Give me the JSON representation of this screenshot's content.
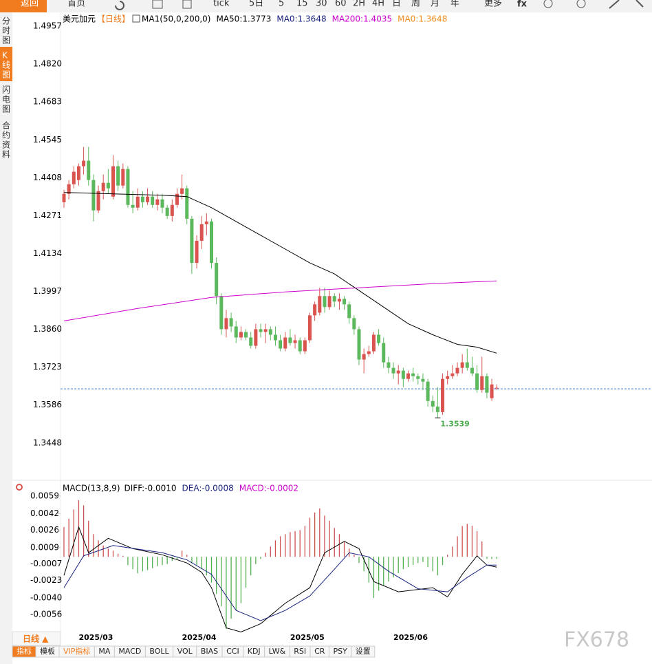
{
  "toolbar": {
    "back": "返回",
    "home": "首页",
    "items": [
      "tick",
      "5日",
      "5",
      "15",
      "30",
      "60",
      "2H",
      "4H",
      "日",
      "周",
      "月",
      "年"
    ],
    "more": "更多"
  },
  "sidebar": [
    "分时图",
    "K线图",
    "闪电图",
    "合约资料"
  ],
  "chart_data": [
    {
      "type": "candlestick",
      "title": "美元加元",
      "period": "【日线】",
      "indicator": "MA1(50,0,200,0)",
      "categories": [
        null,
        null,
        null,
        "2025/03",
        null,
        null,
        null,
        null,
        null,
        null,
        null,
        null,
        null,
        null,
        null,
        null,
        null,
        null,
        null,
        null,
        null,
        null,
        null,
        null,
        "2025/04",
        null,
        null,
        null,
        null,
        null,
        null,
        null,
        null,
        null,
        null,
        null,
        null,
        null,
        null,
        null,
        null,
        null,
        null,
        null,
        null,
        null,
        "2025/05",
        null,
        null,
        null,
        null,
        null,
        null,
        null,
        null,
        null,
        null,
        null,
        null,
        null,
        null,
        null,
        null,
        null,
        null,
        null,
        null,
        "2025/06",
        null,
        null,
        null,
        null,
        null,
        null,
        null,
        null,
        null,
        null,
        null,
        null,
        null,
        null,
        null,
        null,
        null,
        null,
        null,
        null,
        null
      ],
      "ohlc": [
        [
          1.432,
          1.4365,
          1.43,
          1.435
        ],
        [
          1.435,
          1.44,
          1.433,
          1.4385
        ],
        [
          1.4385,
          1.445,
          1.437,
          1.443
        ],
        [
          1.44,
          1.446,
          1.438,
          1.445
        ],
        [
          1.445,
          1.452,
          1.442,
          1.447
        ],
        [
          1.447,
          1.452,
          1.438,
          1.44
        ],
        [
          1.44,
          1.442,
          1.425,
          1.429
        ],
        [
          1.429,
          1.438,
          1.428,
          1.436
        ],
        [
          1.436,
          1.442,
          1.433,
          1.439
        ],
        [
          1.439,
          1.444,
          1.435,
          1.437
        ],
        [
          1.434,
          1.449,
          1.433,
          1.445
        ],
        [
          1.445,
          1.447,
          1.436,
          1.438
        ],
        [
          1.438,
          1.446,
          1.437,
          1.444
        ],
        [
          1.444,
          1.445,
          1.43,
          1.431
        ],
        [
          1.431,
          1.436,
          1.428,
          1.43
        ],
        [
          1.43,
          1.437,
          1.429,
          1.434
        ],
        [
          1.434,
          1.436,
          1.43,
          1.432
        ],
        [
          1.432,
          1.437,
          1.431,
          1.434
        ],
        [
          1.434,
          1.436,
          1.43,
          1.431
        ],
        [
          1.431,
          1.435,
          1.429,
          1.433
        ],
        [
          1.433,
          1.435,
          1.428,
          1.43
        ],
        [
          1.43,
          1.431,
          1.426,
          1.427
        ],
        [
          1.427,
          1.433,
          1.425,
          1.431
        ],
        [
          1.431,
          1.437,
          1.43,
          1.435
        ],
        [
          1.435,
          1.442,
          1.433,
          1.437
        ],
        [
          1.437,
          1.438,
          1.424,
          1.426
        ],
        [
          1.426,
          1.427,
          1.406,
          1.41
        ],
        [
          1.41,
          1.42,
          1.408,
          1.418
        ],
        [
          1.418,
          1.427,
          1.415,
          1.424
        ],
        [
          1.424,
          1.428,
          1.42,
          1.425
        ],
        [
          1.425,
          1.426,
          1.408,
          1.41
        ],
        [
          1.41,
          1.412,
          1.395,
          1.398
        ],
        [
          1.398,
          1.399,
          1.384,
          1.386
        ],
        [
          1.386,
          1.393,
          1.383,
          1.39
        ],
        [
          1.39,
          1.392,
          1.385,
          1.387
        ],
        [
          1.387,
          1.389,
          1.381,
          1.383
        ],
        [
          1.383,
          1.387,
          1.382,
          1.385
        ],
        [
          1.385,
          1.386,
          1.382,
          1.383
        ],
        [
          1.383,
          1.385,
          1.379,
          1.38
        ],
        [
          1.38,
          1.388,
          1.379,
          1.386
        ],
        [
          1.386,
          1.388,
          1.383,
          1.385
        ],
        [
          1.385,
          1.388,
          1.381,
          1.386
        ],
        [
          1.386,
          1.387,
          1.382,
          1.384
        ],
        [
          1.384,
          1.387,
          1.38,
          1.382
        ],
        [
          1.382,
          1.384,
          1.378,
          1.379
        ],
        [
          1.379,
          1.385,
          1.378,
          1.383
        ],
        [
          1.383,
          1.386,
          1.38,
          1.381
        ],
        [
          1.381,
          1.384,
          1.379,
          1.382
        ],
        [
          1.382,
          1.383,
          1.377,
          1.378
        ],
        [
          1.378,
          1.383,
          1.377,
          1.382
        ],
        [
          1.382,
          1.392,
          1.381,
          1.391
        ],
        [
          1.391,
          1.396,
          1.389,
          1.395
        ],
        [
          1.392,
          1.401,
          1.391,
          1.398
        ],
        [
          1.398,
          1.401,
          1.392,
          1.394
        ],
        [
          1.394,
          1.4,
          1.393,
          1.398
        ],
        [
          1.398,
          1.399,
          1.394,
          1.396
        ],
        [
          1.396,
          1.399,
          1.393,
          1.397
        ],
        [
          1.397,
          1.398,
          1.393,
          1.395
        ],
        [
          1.395,
          1.396,
          1.388,
          1.39
        ],
        [
          1.39,
          1.391,
          1.384,
          1.386
        ],
        [
          1.386,
          1.387,
          1.373,
          1.375
        ],
        [
          1.375,
          1.379,
          1.37,
          1.377
        ],
        [
          1.377,
          1.38,
          1.376,
          1.378
        ],
        [
          1.378,
          1.385,
          1.377,
          1.384
        ],
        [
          1.384,
          1.386,
          1.38,
          1.381
        ],
        [
          1.381,
          1.383,
          1.372,
          1.374
        ],
        [
          1.374,
          1.376,
          1.37,
          1.372
        ],
        [
          1.372,
          1.374,
          1.368,
          1.37
        ],
        [
          1.37,
          1.373,
          1.366,
          1.371
        ],
        [
          1.371,
          1.372,
          1.365,
          1.368
        ],
        [
          1.368,
          1.371,
          1.367,
          1.37
        ],
        [
          1.37,
          1.372,
          1.367,
          1.369
        ],
        [
          1.369,
          1.37,
          1.366,
          1.368
        ],
        [
          1.368,
          1.37,
          1.364,
          1.367
        ],
        [
          1.367,
          1.368,
          1.358,
          1.36
        ],
        [
          1.36,
          1.362,
          1.356,
          1.358
        ],
        [
          1.358,
          1.365,
          1.3539,
          1.356
        ],
        [
          1.356,
          1.37,
          1.355,
          1.368
        ],
        [
          1.368,
          1.371,
          1.366,
          1.369
        ],
        [
          1.369,
          1.373,
          1.368,
          1.37
        ],
        [
          1.37,
          1.374,
          1.369,
          1.372
        ],
        [
          1.372,
          1.377,
          1.37,
          1.374
        ],
        [
          1.374,
          1.379,
          1.371,
          1.372
        ],
        [
          1.372,
          1.376,
          1.369,
          1.37
        ],
        [
          1.37,
          1.373,
          1.363,
          1.364
        ],
        [
          1.364,
          1.376,
          1.363,
          1.369
        ],
        [
          1.369,
          1.37,
          1.361,
          1.363
        ],
        [
          1.361,
          1.368,
          1.36,
          1.366
        ],
        [
          1.3648,
          1.366,
          1.364,
          1.3648
        ]
      ],
      "up_color": "#d9534f",
      "down_color": "#5cb85c",
      "ylim": [
        1.3313,
        1.5002
      ],
      "yticks": [
        1.4957,
        {
          "value": 1.482,
          "label": "1.4820"
        },
        1.4683,
        1.4545,
        1.4408,
        1.4271,
        1.4134,
        1.3997,
        {
          "value": 1.386,
          "label": "1.3860"
        },
        1.3723,
        1.3586,
        1.3448
      ],
      "last_price": 1.3644,
      "low_label": "1.3539",
      "series": [
        {
          "color": "#000000",
          "x": [
            0,
            10,
            20,
            25,
            30,
            35,
            40,
            45,
            50,
            55,
            60,
            65,
            70,
            75,
            80,
            84,
            88
          ],
          "values": [
            1.4355,
            1.435,
            1.4345,
            1.434,
            1.43,
            1.425,
            1.42,
            1.415,
            1.41,
            1.406,
            1.4,
            1.394,
            1.388,
            1.384,
            1.3805,
            1.3795,
            1.3773
          ]
        },
        {
          "color": "#cc00cc",
          "x": [
            0,
            15,
            30,
            45,
            60,
            75,
            88
          ],
          "values": [
            1.389,
            1.3935,
            1.3975,
            1.3995,
            1.401,
            1.4025,
            1.4035
          ]
        }
      ],
      "legend": [
        {
          "name": "MA50:1.3773",
          "color": "#000000"
        },
        {
          "name": "MA0:1.3648",
          "color": "#1a237e"
        },
        {
          "name": "MA200:1.4035",
          "color": "#cc00cc"
        },
        {
          "name": "MA0:1.3648",
          "color": "#f08c1e"
        }
      ]
    },
    {
      "type": "macd",
      "title": "MACD(13,8,9)",
      "ylim": [
        -0.0074,
        0.0073
      ],
      "yticks": [
        0.0059,
        0.0042,
        0.0026,
        0.0009,
        -0.0007,
        -0.0023,
        {
          "value": -0.004,
          "label": "-0.0040"
        },
        -0.0056
      ],
      "up_color": "#d05050",
      "down_color": "#50b050",
      "values": [
        0.0029,
        0.0037,
        0.0046,
        0.0055,
        0.005,
        0.0035,
        0.0022,
        0.0016,
        0.0011,
        0.0008,
        0.0006,
        0.0003,
        0.0001,
        -0.0008,
        -0.0012,
        -0.0016,
        -0.0014,
        -0.0013,
        -0.0011,
        -0.0009,
        -0.0008,
        -0.0007,
        -0.0004,
        -0.0002,
        0.0006,
        0.0002,
        -0.0006,
        -0.0008,
        -0.0012,
        -0.0018,
        -0.0025,
        -0.0036,
        -0.0048,
        -0.007,
        -0.006,
        -0.0052,
        -0.0045,
        -0.003,
        -0.0018,
        -0.0007,
        -0.0002,
        0.0004,
        0.001,
        0.0016,
        0.002,
        0.0022,
        0.0024,
        0.0025,
        0.0026,
        0.003,
        0.0038,
        0.0043,
        0.0047,
        0.004,
        0.0035,
        0.0028,
        0.0022,
        0.0015,
        0.0008,
        0.0002,
        -0.0006,
        -0.0014,
        -0.0025,
        -0.004,
        -0.0033,
        -0.0028,
        -0.0024,
        -0.002,
        -0.0016,
        -0.0012,
        -0.001,
        -0.0008,
        -0.0006,
        -0.0005,
        -0.001,
        -0.0014,
        -0.0018,
        -0.0008,
        0.0002,
        0.001,
        0.002,
        0.003,
        0.0032,
        0.003,
        0.0025,
        0.0015,
        -0.0002,
        -0.0002,
        -0.0002
      ],
      "series": [
        {
          "color": "#000000",
          "x": [
            0,
            3,
            5,
            9,
            14,
            20,
            25,
            28,
            30,
            33,
            36,
            40,
            45,
            50,
            53,
            57,
            60,
            63,
            68,
            75,
            78,
            81,
            84,
            86,
            88
          ],
          "values": [
            -0.0018,
            0.0029,
            0.0004,
            0.0018,
            0.0008,
            0.0002,
            -0.0006,
            -0.0015,
            -0.003,
            -0.0069,
            -0.0073,
            -0.0065,
            -0.0045,
            -0.003,
            0.0004,
            0.0015,
            0.0008,
            -0.0024,
            -0.0034,
            -0.003,
            -0.0039,
            -0.0017,
            0.0001,
            -0.0008,
            -0.001
          ]
        },
        {
          "color": "#1a237e",
          "x": [
            0,
            4,
            10,
            20,
            25,
            30,
            35,
            40,
            45,
            50,
            55,
            58,
            62,
            66,
            72,
            78,
            82,
            86,
            88
          ],
          "values": [
            -0.003,
            0.0001,
            0.0011,
            0.0004,
            -0.0003,
            -0.0017,
            -0.0052,
            -0.0062,
            -0.0052,
            -0.0038,
            -0.0012,
            0.0004,
            0,
            -0.0014,
            -0.0031,
            -0.0034,
            -0.002,
            -0.0008,
            -0.0008
          ]
        }
      ],
      "legend": [
        {
          "name": "DIFF:-0.0010",
          "color": "#000000"
        },
        {
          "name": "DEA:-0.0008",
          "color": "#1a237e"
        },
        {
          "name": "MACD:-0.0002",
          "color": "#cc00cc"
        }
      ]
    }
  ],
  "footer": {
    "period": "日线 ▲",
    "tabs": [
      "指标",
      "模板",
      "VIP指标",
      "MA",
      "MACD",
      "BOLL",
      "VOL",
      "BIAS",
      "CCI",
      "KDJ",
      "LW&",
      "RSI",
      "CR",
      "PSY",
      "设置"
    ]
  },
  "watermark": "FX678"
}
